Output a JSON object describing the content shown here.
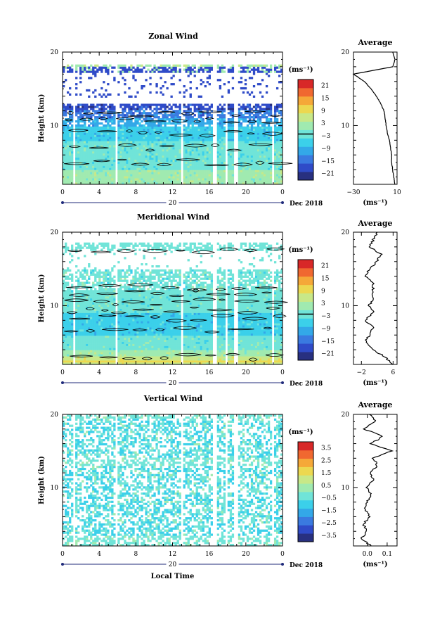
{
  "panels": [
    {
      "title": "Zonal Wind",
      "ylabel": "Height (km)",
      "yticks": [
        "20",
        "10"
      ],
      "xticks": [
        "0",
        "4",
        "8",
        "12",
        "16",
        "20",
        "0"
      ],
      "day_label": "20",
      "month_label": "Dec 2018",
      "cb_unit": "(ms⁻¹)",
      "cb_ticks": [
        "21",
        "15",
        "9",
        "3",
        "−3",
        "−9",
        "−15",
        "−21"
      ],
      "avg_title": "Average",
      "avg_yticks": [
        "20",
        "10"
      ],
      "avg_xticks": [
        "−30",
        "10"
      ],
      "avg_unit": "(ms⁻¹)"
    },
    {
      "title": "Meridional Wind",
      "ylabel": "Height (km)",
      "yticks": [
        "20",
        "10"
      ],
      "xticks": [
        "0",
        "4",
        "8",
        "12",
        "16",
        "20",
        "0"
      ],
      "day_label": "20",
      "month_label": "Dec 2018",
      "cb_unit": "(ms⁻¹)",
      "cb_ticks": [
        "21",
        "15",
        "9",
        "3",
        "−3",
        "−9",
        "−15",
        "−21"
      ],
      "avg_title": "Average",
      "avg_yticks": [
        "20",
        "10"
      ],
      "avg_xticks": [
        "−2",
        "6"
      ],
      "avg_unit": "(ms⁻¹)"
    },
    {
      "title": "Vertical Wind",
      "ylabel": "Height (km)",
      "yticks": [
        "20",
        "10"
      ],
      "xticks": [
        "0",
        "4",
        "8",
        "12",
        "16",
        "20",
        "0"
      ],
      "day_label": "20",
      "month_label": "Dec 2018",
      "cb_unit": "(ms⁻¹)",
      "cb_ticks": [
        "3.5",
        "2.5",
        "1.5",
        "0.5",
        "−0.5",
        "−1.5",
        "−2.5",
        "−3.5"
      ],
      "avg_title": "Average",
      "avg_yticks": [
        "20",
        "10"
      ],
      "avg_xticks": [
        "0.0",
        "0.1"
      ],
      "avg_unit": "(ms⁻¹)",
      "xlabel": "Local Time"
    }
  ],
  "colormap": [
    "#283080",
    "#2f4bc8",
    "#3a7ae0",
    "#33a8e8",
    "#3bd0ea",
    "#70e4d8",
    "#a0eab0",
    "#c8e888",
    "#ecd850",
    "#f5a838",
    "#f06830",
    "#d82828"
  ],
  "chart_data": [
    {
      "type": "heatmap",
      "title": "Zonal Wind",
      "ylabel": "Height (km)",
      "ylim": [
        2,
        20
      ],
      "x": "local time (hours), 0–24, 20 Dec 2018",
      "colorbar_range": [
        -21,
        21
      ],
      "colorbar_unit": "ms⁻¹",
      "profile": {
        "title": "Average",
        "xlim": [
          -30,
          10
        ],
        "height_km": [
          2,
          3,
          4,
          5,
          6,
          7,
          8,
          9,
          10,
          11,
          12,
          13,
          14,
          15,
          16,
          17,
          18,
          19,
          20
        ],
        "values": [
          8,
          7,
          6,
          5,
          5,
          4,
          3,
          1,
          0,
          -1,
          -2,
          -5,
          -9,
          -14,
          -20,
          -30,
          6,
          8,
          6
        ]
      }
    },
    {
      "type": "heatmap",
      "title": "Meridional Wind",
      "ylabel": "Height (km)",
      "ylim": [
        2,
        20
      ],
      "x": "local time (hours), 0–24, 20 Dec 2018",
      "colorbar_range": [
        -21,
        21
      ],
      "colorbar_unit": "ms⁻¹",
      "profile": {
        "title": "Average",
        "xlim": [
          -4,
          7
        ],
        "height_km": [
          2,
          3,
          4,
          5,
          6,
          7,
          8,
          9,
          10,
          11,
          12,
          13,
          14,
          15,
          16,
          17,
          18,
          19,
          20
        ],
        "values": [
          6,
          4,
          1,
          -1,
          0,
          1,
          -1,
          1,
          0,
          1,
          1,
          1,
          -1,
          0,
          2,
          3,
          0,
          1,
          2
        ]
      }
    },
    {
      "type": "heatmap",
      "title": "Vertical Wind",
      "ylabel": "Height (km)",
      "xlabel": "Local Time",
      "ylim": [
        2,
        20
      ],
      "x": "local time (hours), 0–24, 20 Dec 2018",
      "colorbar_range": [
        -3.5,
        3.5
      ],
      "colorbar_unit": "ms⁻¹",
      "profile": {
        "title": "Average",
        "xlim": [
          -0.07,
          0.15
        ],
        "height_km": [
          2,
          3,
          4,
          5,
          6,
          7,
          8,
          9,
          10,
          11,
          12,
          13,
          14,
          15,
          16,
          17,
          18,
          19,
          20
        ],
        "values": [
          0.02,
          -0.03,
          0.0,
          -0.02,
          0.01,
          -0.01,
          0.0,
          0.02,
          0.0,
          0.03,
          0.01,
          0.05,
          0.03,
          0.12,
          0.02,
          0.08,
          -0.02,
          0.04,
          0.01
        ]
      }
    }
  ]
}
